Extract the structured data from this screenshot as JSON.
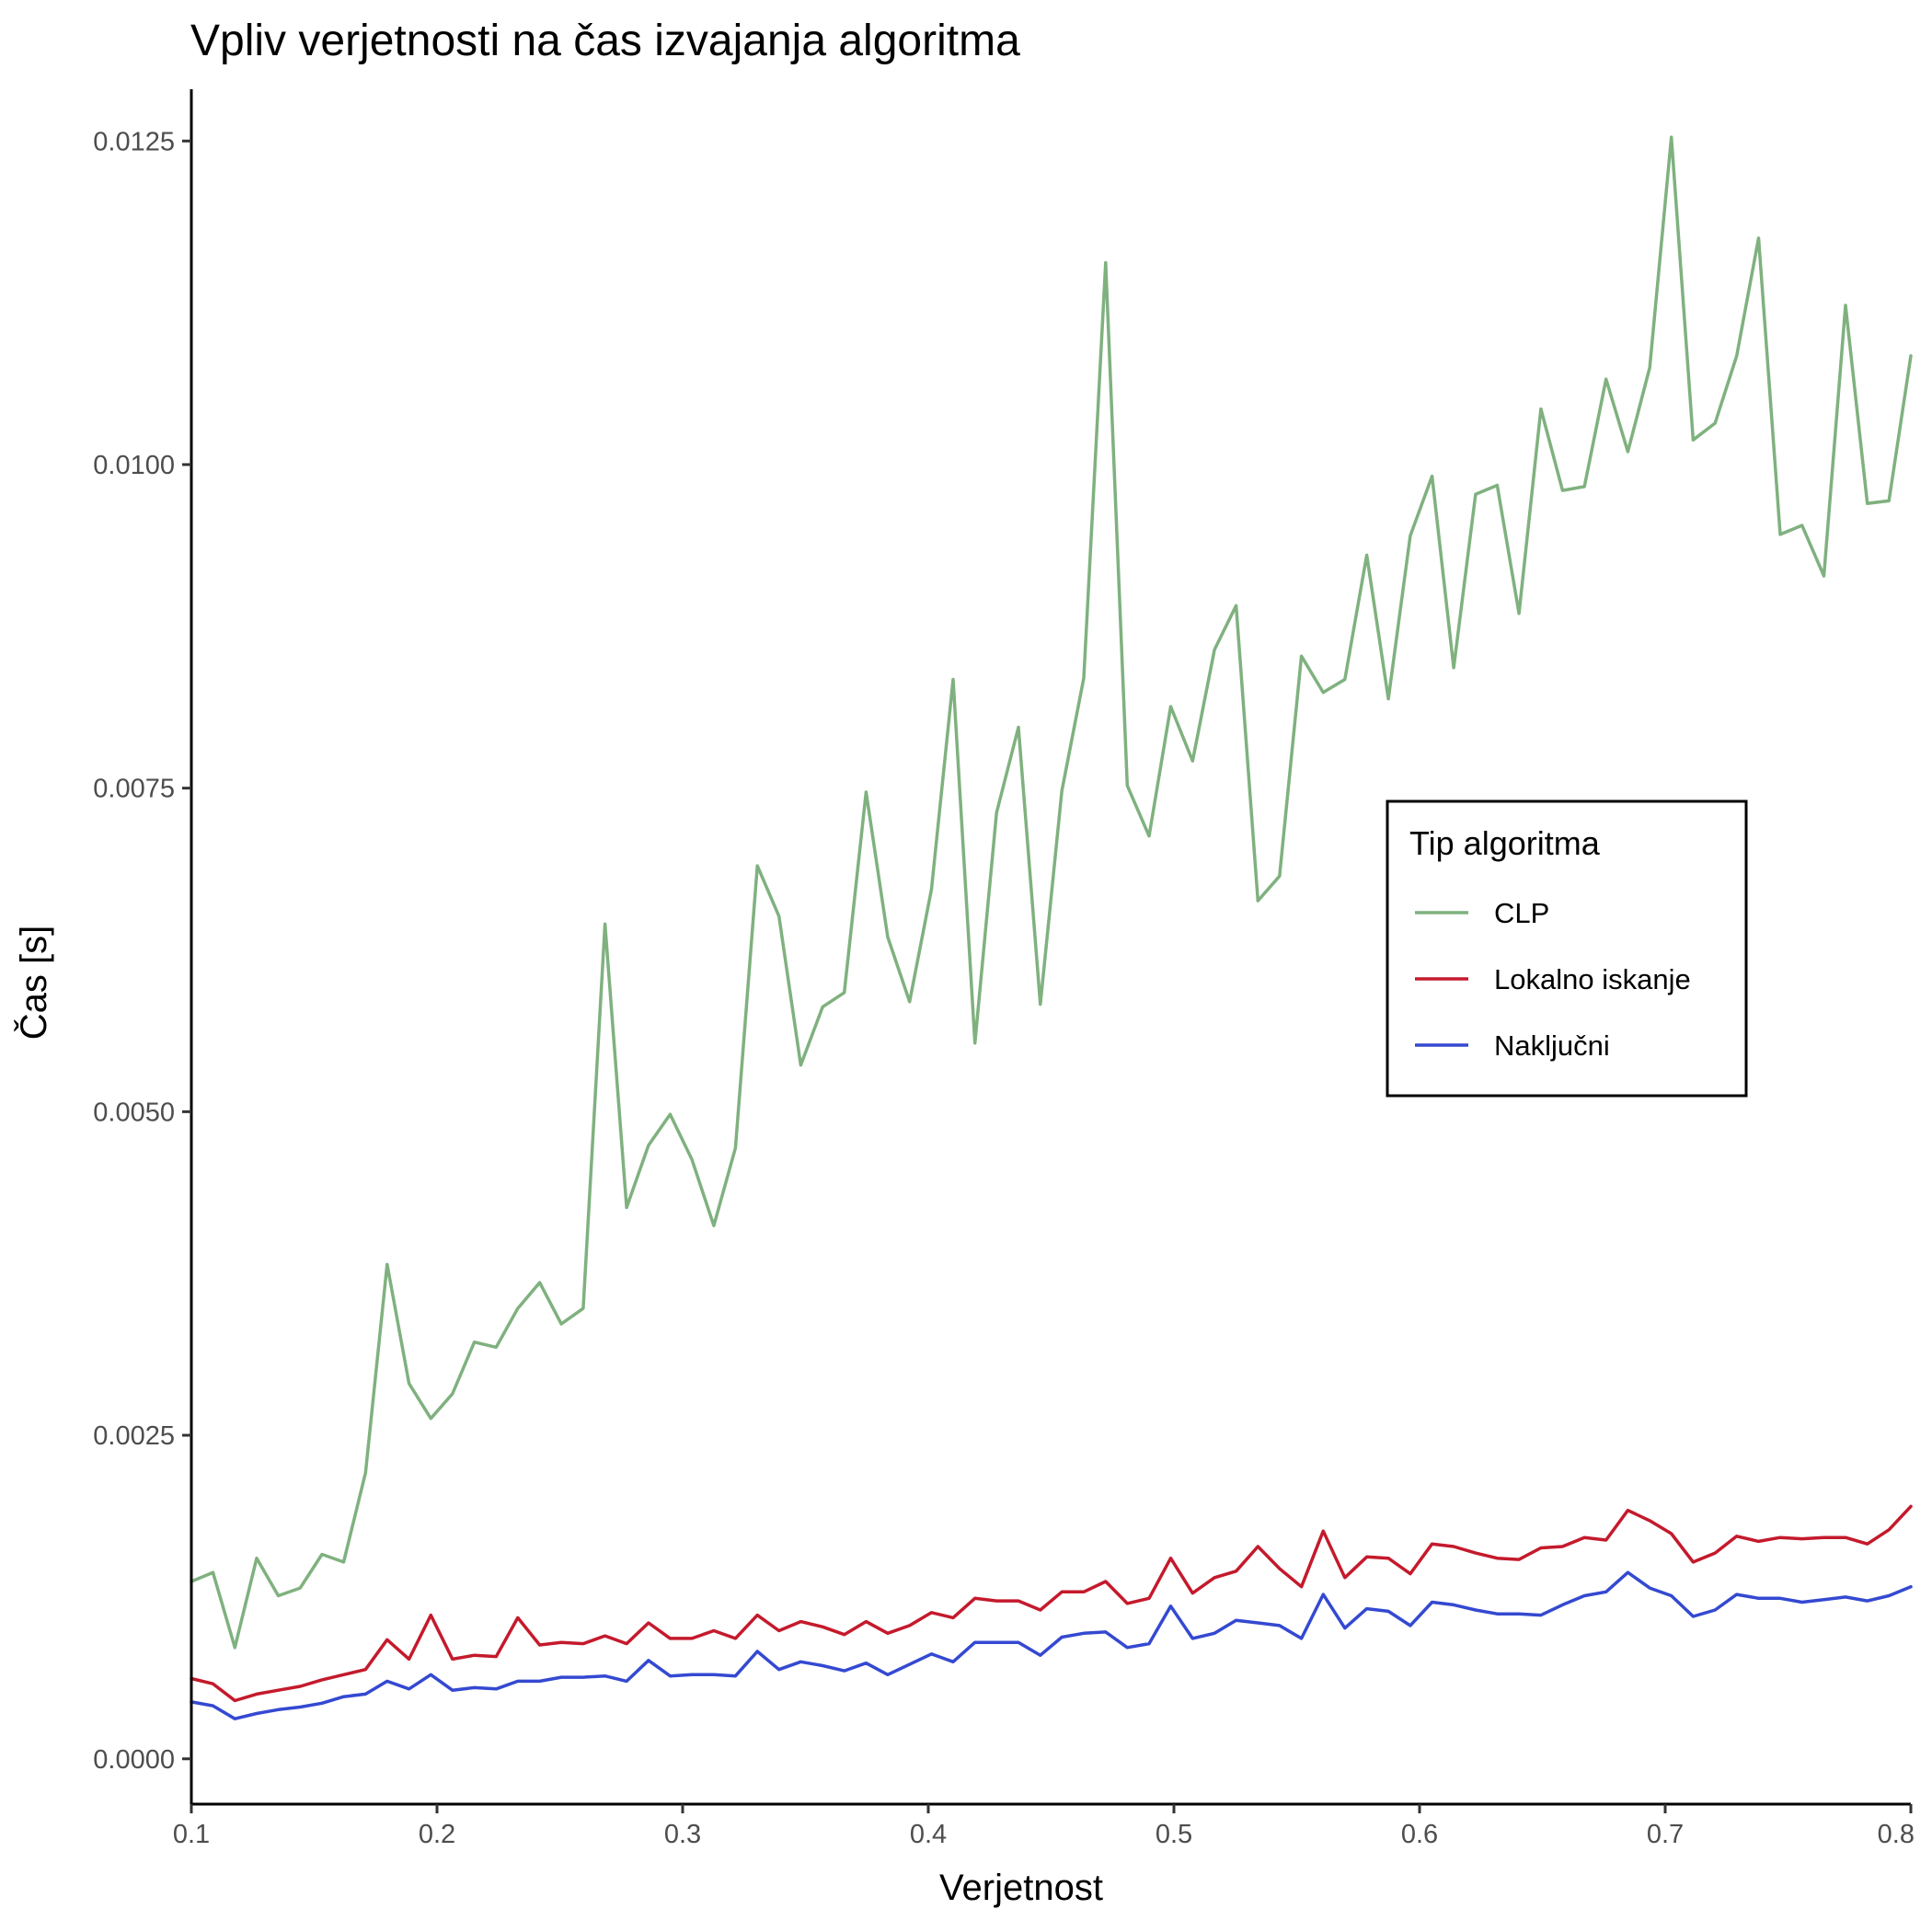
{
  "chart_data": {
    "type": "line",
    "title": "Vpliv verjetnosti na čas izvajanja algoritma",
    "xlabel": "Verjetnost",
    "ylabel": "Čas [s]",
    "xlim": [
      0.1,
      0.8
    ],
    "ylim": [
      -0.00035,
      0.0129
    ],
    "x_ticks": [
      0.1,
      0.2,
      0.3,
      0.4,
      0.5,
      0.6,
      0.7,
      0.8
    ],
    "x_tick_labels": [
      "0.1",
      "0.2",
      "0.3",
      "0.4",
      "0.5",
      "0.6",
      "0.7",
      "0.8"
    ],
    "y_ticks": [
      0,
      0.0025,
      0.005,
      0.0075,
      0.01,
      0.0125
    ],
    "y_tick_labels": [
      "0.0000",
      "0.0025",
      "0.0050",
      "0.0075",
      "0.0100",
      "0.0125"
    ],
    "grid": false,
    "legend": {
      "title": "Tip algoritma",
      "placement": "right"
    },
    "x": [
      0.1,
      0.1088,
      0.1177,
      0.1266,
      0.1354,
      0.1443,
      0.1532,
      0.162,
      0.1709,
      0.1797,
      0.1886,
      0.1975,
      0.2063,
      0.2152,
      0.2241,
      0.2329,
      0.2418,
      0.2506,
      0.2595,
      0.2684,
      0.2772,
      0.2861,
      0.2949,
      0.3038,
      0.3127,
      0.3215,
      0.3304,
      0.3392,
      0.3481,
      0.357,
      0.3658,
      0.3747,
      0.3835,
      0.3924,
      0.4013,
      0.4101,
      0.419,
      0.4278,
      0.4367,
      0.4456,
      0.4544,
      0.4633,
      0.4722,
      0.481,
      0.4899,
      0.4987,
      0.5076,
      0.5165,
      0.5253,
      0.5342,
      0.543,
      0.5519,
      0.5608,
      0.5696,
      0.5785,
      0.5873,
      0.5962,
      0.6051,
      0.6139,
      0.6228,
      0.6316,
      0.6405,
      0.6494,
      0.6582,
      0.6671,
      0.6759,
      0.6848,
      0.6937,
      0.7025,
      0.7114,
      0.7203,
      0.7291,
      0.738,
      0.7468,
      0.7557,
      0.7646,
      0.7734,
      0.7823,
      0.7911,
      0.8
    ],
    "series": [
      {
        "name": "CLP",
        "color": "#7fb17f",
        "values": [
          0.00137,
          0.00144,
          0.00086,
          0.00155,
          0.00126,
          0.00132,
          0.00158,
          0.00152,
          0.00221,
          0.00382,
          0.0029,
          0.00263,
          0.00282,
          0.00322,
          0.00318,
          0.00348,
          0.00368,
          0.00336,
          0.00348,
          0.00645,
          0.00426,
          0.00474,
          0.00498,
          0.00463,
          0.00412,
          0.00472,
          0.0069,
          0.00651,
          0.00536,
          0.00581,
          0.00592,
          0.00747,
          0.00635,
          0.00585,
          0.00672,
          0.00834,
          0.00553,
          0.00731,
          0.00797,
          0.00583,
          0.00748,
          0.00835,
          0.01156,
          0.00752,
          0.00713,
          0.00813,
          0.00771,
          0.00857,
          0.00891,
          0.00663,
          0.00682,
          0.00852,
          0.00824,
          0.00834,
          0.0093,
          0.00819,
          0.00945,
          0.00991,
          0.00843,
          0.00977,
          0.00984,
          0.00885,
          0.01043,
          0.0098,
          0.00983,
          0.01066,
          0.0101,
          0.01075,
          0.01253,
          0.01019,
          0.01032,
          0.01084,
          0.01175,
          0.00946,
          0.00953,
          0.00914,
          0.01123,
          0.0097,
          0.00972,
          0.01084
        ]
      },
      {
        "name": "Lokalno iskanje",
        "color": "#c41a2c",
        "values": [
          0.00062,
          0.00058,
          0.00045,
          0.0005,
          0.00053,
          0.00056,
          0.00061,
          0.00065,
          0.00069,
          0.00092,
          0.00077,
          0.00111,
          0.00077,
          0.0008,
          0.00079,
          0.00109,
          0.00088,
          0.0009,
          0.00089,
          0.00095,
          0.00089,
          0.00105,
          0.00093,
          0.00093,
          0.00099,
          0.00093,
          0.00111,
          0.00099,
          0.00106,
          0.00102,
          0.00096,
          0.00106,
          0.00097,
          0.00103,
          0.00113,
          0.00109,
          0.00124,
          0.00122,
          0.00122,
          0.00115,
          0.00129,
          0.00129,
          0.00137,
          0.0012,
          0.00124,
          0.00155,
          0.00128,
          0.0014,
          0.00145,
          0.00164,
          0.00147,
          0.00133,
          0.00176,
          0.0014,
          0.00156,
          0.00155,
          0.00143,
          0.00166,
          0.00164,
          0.00159,
          0.00155,
          0.00154,
          0.00163,
          0.00164,
          0.00171,
          0.00169,
          0.00192,
          0.00184,
          0.00174,
          0.00152,
          0.00159,
          0.00172,
          0.00168,
          0.00171,
          0.0017,
          0.00171,
          0.00171,
          0.00166,
          0.00177,
          0.00195
        ]
      },
      {
        "name": "Naključni",
        "color": "#3449d1",
        "values": [
          0.00044,
          0.00041,
          0.00031,
          0.00035,
          0.00038,
          0.0004,
          0.00043,
          0.00048,
          0.0005,
          0.0006,
          0.00054,
          0.00065,
          0.00053,
          0.00055,
          0.00054,
          0.0006,
          0.0006,
          0.00063,
          0.00063,
          0.00064,
          0.0006,
          0.00076,
          0.00064,
          0.00065,
          0.00065,
          0.00064,
          0.00083,
          0.00069,
          0.00075,
          0.00072,
          0.00068,
          0.00074,
          0.00065,
          0.00073,
          0.00081,
          0.00075,
          0.0009,
          0.0009,
          0.0009,
          0.0008,
          0.00094,
          0.00097,
          0.00098,
          0.00086,
          0.00089,
          0.00118,
          0.00093,
          0.00097,
          0.00107,
          0.00105,
          0.00103,
          0.00093,
          0.00127,
          0.00101,
          0.00116,
          0.00114,
          0.00103,
          0.00121,
          0.00119,
          0.00115,
          0.00112,
          0.00112,
          0.00111,
          0.00119,
          0.00126,
          0.00129,
          0.00144,
          0.00132,
          0.00126,
          0.0011,
          0.00115,
          0.00127,
          0.00124,
          0.00124,
          0.00121,
          0.00123,
          0.00125,
          0.00122,
          0.00126,
          0.00133
        ]
      }
    ]
  }
}
